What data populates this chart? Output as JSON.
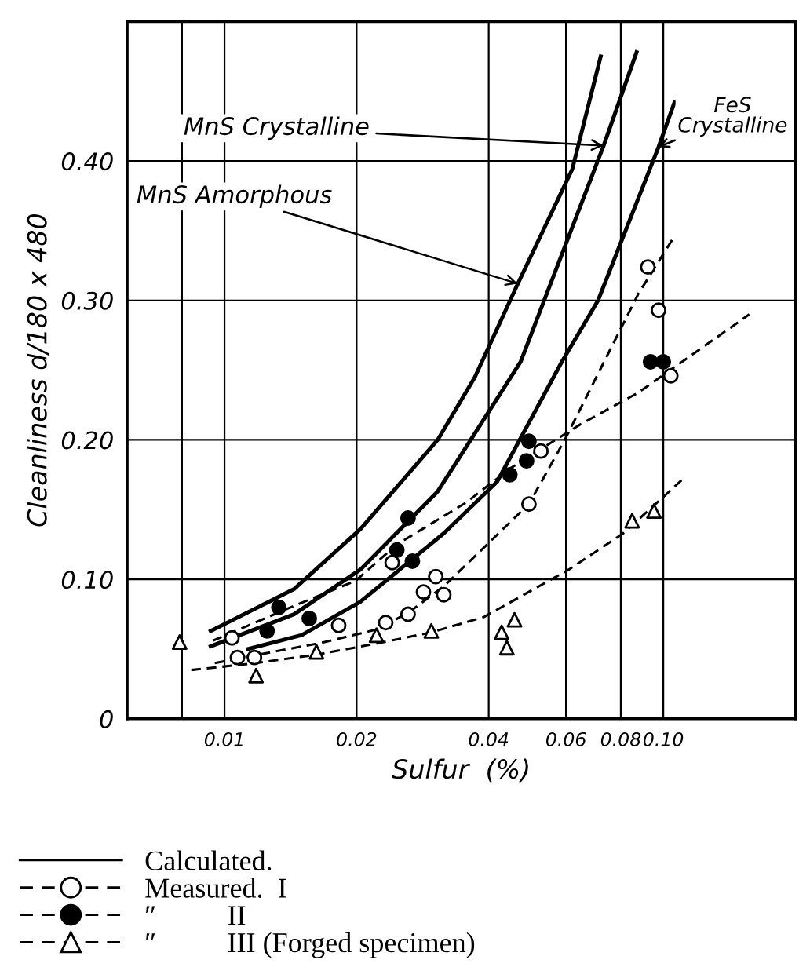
{
  "chart_data": {
    "type": "line",
    "xlabel": "Sulfur  (%)",
    "ylabel": "Cleanliness d/180 x 480",
    "log": "x",
    "xlim": [
      0.006,
      0.2
    ],
    "xticks": [
      {
        "value": 0.008,
        "label": null
      },
      {
        "value": 0.01,
        "label": "0.01"
      },
      {
        "value": 0.02,
        "label": "0.02"
      },
      {
        "value": 0.04,
        "label": "0.04"
      },
      {
        "value": 0.06,
        "label": "0.06"
      },
      {
        "value": 0.08,
        "label": "0.08"
      },
      {
        "value": 0.1,
        "label": "0.10"
      }
    ],
    "ylim": [
      0,
      0.5
    ],
    "yticks": [
      0,
      {
        "value": 0.1,
        "label": "0.10"
      },
      {
        "value": 0.2,
        "label": "0.20"
      },
      {
        "value": 0.3,
        "label": "0.30"
      },
      {
        "value": 0.4,
        "label": "0.40"
      }
    ],
    "grid": true,
    "legend": "bottom",
    "annotations": [
      "Calculated.",
      {
        "text": "MnS Crystalline",
        "x": 0.0731,
        "y": 0.411
      },
      {
        "text": "MnS Amorphous",
        "x": 0.0466,
        "y": 0.312
      },
      {
        "text": "FeS\nCrystalline",
        "x": 0.0975,
        "y": 0.41
      }
    ],
    "series": [
      {
        "line_style": "solid",
        "color": "#000000",
        "x": [
          0.0093,
          0.0144,
          0.0204,
          0.0306,
          0.0372,
          0.0466,
          0.062,
          0.072
        ],
        "values": [
          0.063,
          0.093,
          0.136,
          0.2,
          0.245,
          0.312,
          0.394,
          0.475
        ]
      },
      {
        "line_style": "solid",
        "color": "#000000",
        "x": [
          0.0093,
          0.0144,
          0.0204,
          0.0306,
          0.0364,
          0.0473,
          0.0535,
          0.0731,
          0.0869
        ],
        "values": [
          0.052,
          0.075,
          0.107,
          0.163,
          0.2,
          0.256,
          0.3,
          0.411,
          0.478
        ]
      },
      {
        "line_style": "solid",
        "color": "#000000",
        "x": [
          0.0113,
          0.015,
          0.0204,
          0.0316,
          0.0418,
          0.0587,
          0.071,
          0.0975,
          0.106
        ],
        "values": [
          0.05,
          0.06,
          0.084,
          0.133,
          0.17,
          0.256,
          0.3,
          0.41,
          0.442
        ]
      },
      {
        "line_style": "dashed",
        "color": "#000000",
        "x": [
          0.0095,
          0.0169,
          0.0222,
          0.0262,
          0.0316,
          0.0494,
          0.0596,
          0.0878,
          0.106
        ],
        "values": [
          0.04,
          0.055,
          0.064,
          0.076,
          0.095,
          0.154,
          0.2,
          0.305,
          0.346
        ]
      },
      {
        "line_style": "dashed",
        "color": "#000000",
        "x": [
          0.0094,
          0.0144,
          0.0199,
          0.0247,
          0.0355,
          0.045,
          0.0646,
          0.0878,
          0.157
        ],
        "values": [
          0.056,
          0.081,
          0.099,
          0.125,
          0.155,
          0.18,
          0.211,
          0.234,
          0.29
        ]
      },
      {
        "line_style": "dashed",
        "color": "#000000",
        "x": [
          0.0084,
          0.0118,
          0.0162,
          0.0222,
          0.0296,
          0.039,
          0.0609,
          0.081,
          0.11
        ],
        "values": [
          0.035,
          0.04,
          0.046,
          0.054,
          0.062,
          0.073,
          0.107,
          0.133,
          0.171
        ]
      },
      {
        "type": "scatter",
        "name": "Measured.  I",
        "marker": "circle",
        "color": "#ffffff",
        "x": [
          0.0104,
          0.0107,
          0.0117,
          0.0182,
          0.0233,
          0.0241,
          0.0262,
          0.0284,
          0.0303,
          0.0316,
          0.0494,
          0.0526,
          0.0922,
          0.0975,
          0.104
        ],
        "values": [
          0.058,
          0.044,
          0.044,
          0.067,
          0.069,
          0.112,
          0.075,
          0.091,
          0.102,
          0.089,
          0.154,
          0.192,
          0.324,
          0.293,
          0.246
        ]
      },
      {
        "type": "scatter",
        "name": "″          II",
        "marker": "circle",
        "color": "#000000",
        "x": [
          0.0125,
          0.0133,
          0.0156,
          0.0247,
          0.0268,
          0.0262,
          0.0447,
          0.0488,
          0.0494,
          0.0935,
          0.1
        ],
        "values": [
          0.063,
          0.08,
          0.072,
          0.121,
          0.113,
          0.144,
          0.175,
          0.185,
          0.199,
          0.256,
          0.256
        ]
      },
      {
        "type": "scatter",
        "name": "″          III (Forged specimen)",
        "marker": "triangle",
        "color": "#ffffff",
        "x": [
          0.0079,
          0.0118,
          0.0162,
          0.0222,
          0.0296,
          0.0428,
          0.044,
          0.0458,
          0.0849,
          0.0952
        ],
        "values": [
          0.055,
          0.031,
          0.048,
          0.06,
          0.063,
          0.062,
          0.051,
          0.071,
          0.142,
          0.149
        ]
      }
    ]
  }
}
